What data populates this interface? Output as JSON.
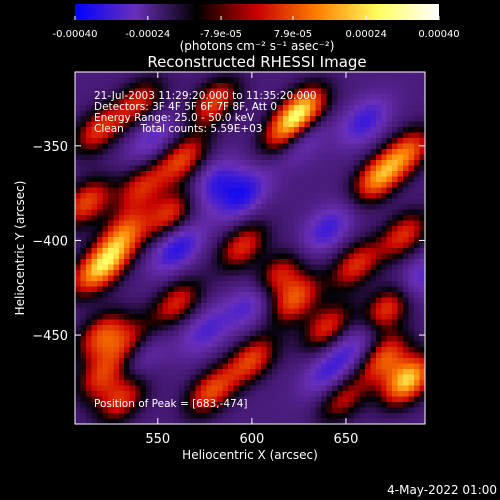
{
  "chart_data": {
    "type": "heatmap",
    "title": "Reconstructed RHESSI Image",
    "xlabel": "Heliocentric X (arcsec)",
    "ylabel": "Heliocentric Y (arcsec)",
    "xlim": [
      506,
      692
    ],
    "ylim": [
      -497,
      -311
    ],
    "x_ticks": [
      "550",
      "600",
      "650"
    ],
    "x_tick_values": [
      550,
      600,
      650
    ],
    "y_ticks": [
      "-350",
      "-400",
      "-450"
    ],
    "y_tick_values": [
      -350,
      -400,
      -450
    ],
    "colorbar": {
      "ticks": [
        "-0.00040",
        "-0.00024",
        "-7.9e-05",
        "7.9e-05",
        "0.00024",
        "0.00040"
      ],
      "tick_values": [
        -0.0004,
        -0.00024,
        -7.9e-05,
        7.9e-05,
        0.00024,
        0.0004
      ],
      "range": [
        -0.0004,
        0.0004
      ],
      "unit": "(photons cm⁻² s⁻¹ asec⁻²)",
      "colors": [
        "#0000ff",
        "#6a2fb8",
        "#000000",
        "#c80000",
        "#ff8000",
        "#ffff60",
        "#ffffff"
      ]
    },
    "annotations": [
      "21-Jul-2003 11:29:20.000 to 11:35:20.000",
      "Detectors: 3F 4F 5F 6F 7F 8F, Att 0",
      "Energy Range: 25.0 - 50.0 keV",
      "Clean     Total counts: 5.59E+03"
    ],
    "peak_label": "Position of Peak = [683,-474]",
    "peak": [
      683,
      -474
    ],
    "sources": [
      {
        "x": 683,
        "y": -474,
        "v": 0.0004
      },
      {
        "x": 670,
        "y": -462,
        "v": 0.00028
      },
      {
        "x": 627,
        "y": -331,
        "v": 0.00036
      },
      {
        "x": 618,
        "y": -343,
        "v": 0.0003
      },
      {
        "x": 667,
        "y": -367,
        "v": 0.00033
      },
      {
        "x": 683,
        "y": -353,
        "v": 0.00027
      },
      {
        "x": 580,
        "y": -327,
        "v": 0.00026
      },
      {
        "x": 540,
        "y": -327,
        "v": 0.00022
      },
      {
        "x": 518,
        "y": -342,
        "v": 0.00024
      },
      {
        "x": 512,
        "y": -380,
        "v": 0.00027
      },
      {
        "x": 563,
        "y": -357,
        "v": 0.00026
      },
      {
        "x": 541,
        "y": -372,
        "v": 0.00022
      },
      {
        "x": 557,
        "y": -386,
        "v": 0.00025
      },
      {
        "x": 532,
        "y": -396,
        "v": 0.00025
      },
      {
        "x": 525,
        "y": -410,
        "v": 0.00023
      },
      {
        "x": 515,
        "y": -418,
        "v": 0.00024
      },
      {
        "x": 595,
        "y": -403,
        "v": 0.00024
      },
      {
        "x": 681,
        "y": -397,
        "v": 0.00024
      },
      {
        "x": 655,
        "y": -413,
        "v": 0.00024
      },
      {
        "x": 672,
        "y": -436,
        "v": 0.00027
      },
      {
        "x": 640,
        "y": -446,
        "v": 0.00024
      },
      {
        "x": 613,
        "y": -419,
        "v": 0.00024
      },
      {
        "x": 623,
        "y": -431,
        "v": 0.00028
      },
      {
        "x": 600,
        "y": -463,
        "v": 0.00026
      },
      {
        "x": 578,
        "y": -480,
        "v": 0.00027
      },
      {
        "x": 560,
        "y": -433,
        "v": 0.00023
      },
      {
        "x": 520,
        "y": -450,
        "v": 0.00026
      },
      {
        "x": 535,
        "y": -455,
        "v": 0.00024
      },
      {
        "x": 520,
        "y": -472,
        "v": 0.00023
      },
      {
        "x": 531,
        "y": -484,
        "v": 0.00024
      },
      {
        "x": 648,
        "y": -484,
        "v": 0.0002
      },
      {
        "x": 560,
        "y": -404,
        "v": -0.00022
      },
      {
        "x": 625,
        "y": -346,
        "v": -0.0002
      },
      {
        "x": 595,
        "y": -376,
        "v": -0.00022
      },
      {
        "x": 580,
        "y": -370,
        "v": -0.00018
      },
      {
        "x": 660,
        "y": -337,
        "v": -0.00018
      },
      {
        "x": 640,
        "y": -394,
        "v": -0.00018
      },
      {
        "x": 600,
        "y": -433,
        "v": -0.00018
      },
      {
        "x": 640,
        "y": -470,
        "v": -0.00016
      },
      {
        "x": 540,
        "y": -460,
        "v": -0.00016
      },
      {
        "x": 690,
        "y": -420,
        "v": -0.00016
      },
      {
        "x": 547,
        "y": -346,
        "v": -0.00014
      },
      {
        "x": 575,
        "y": -448,
        "v": -0.00015
      },
      {
        "x": 655,
        "y": -455,
        "v": -0.00014
      }
    ]
  },
  "footer": {
    "timestamp": "4-May-2022 01:00"
  }
}
